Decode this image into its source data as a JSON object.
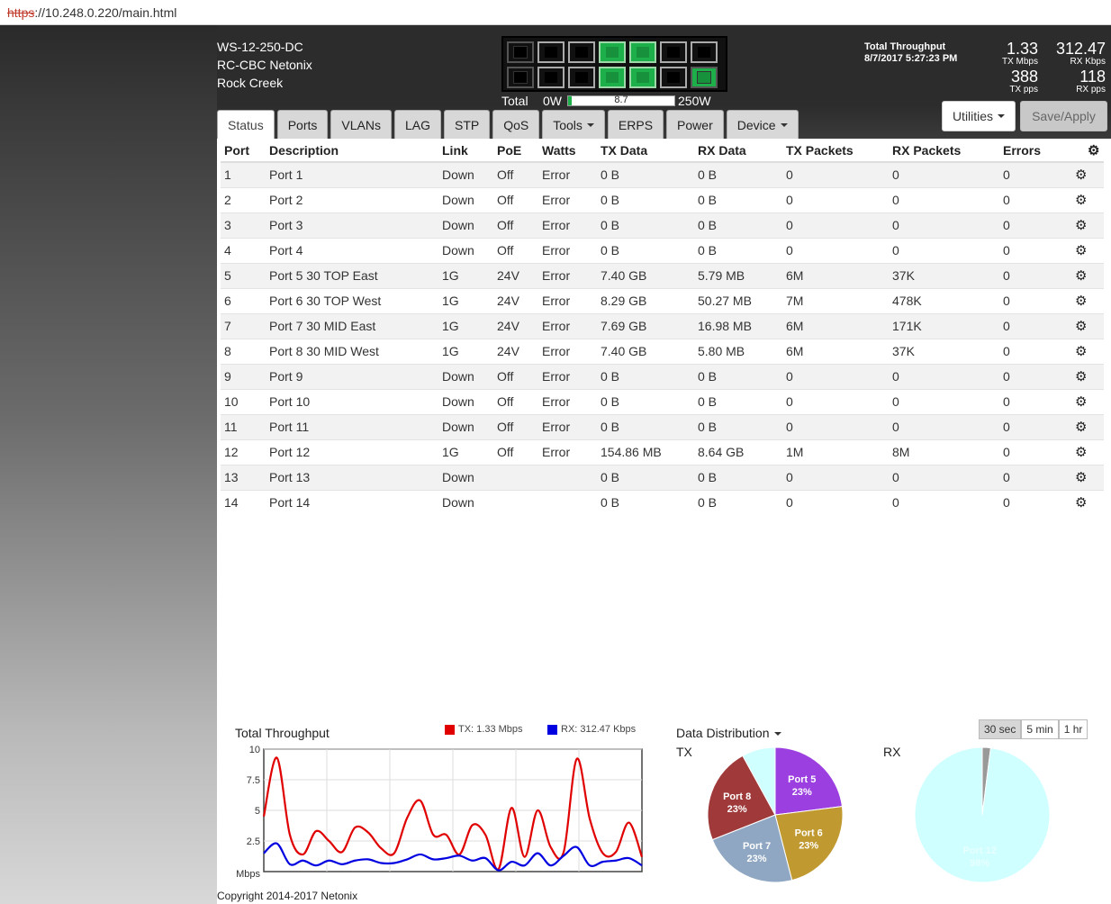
{
  "browser": {
    "protocol": "https",
    "url_rest": "://10.248.0.220/main.html"
  },
  "device": {
    "model": "WS-12-250-DC",
    "name": "RC-CBC Netonix",
    "location": "Rock Creek"
  },
  "power": {
    "label": "Total",
    "min_label": "0W",
    "max_label": "250W",
    "value": "8.7",
    "fraction": 0.035
  },
  "throughput": {
    "title": "Total Throughput",
    "timestamp": "8/7/2017 5:27:23 PM",
    "tx_mbps": "1.33",
    "tx_mbps_unit": "TX Mbps",
    "rx_kbps": "312.47",
    "rx_kbps_unit": "RX Kbps",
    "tx_pps": "388",
    "tx_pps_unit": "TX pps",
    "rx_pps": "118",
    "rx_pps_unit": "RX pps"
  },
  "buttons": {
    "utilities": "Utilities",
    "save_apply": "Save/Apply"
  },
  "tabs": [
    {
      "label": "Status",
      "dropdown": false
    },
    {
      "label": "Ports",
      "dropdown": false
    },
    {
      "label": "VLANs",
      "dropdown": false
    },
    {
      "label": "LAG",
      "dropdown": false
    },
    {
      "label": "STP",
      "dropdown": false
    },
    {
      "label": "QoS",
      "dropdown": false
    },
    {
      "label": "Tools",
      "dropdown": true
    },
    {
      "label": "ERPS",
      "dropdown": false
    },
    {
      "label": "Power",
      "dropdown": false
    },
    {
      "label": "Device",
      "dropdown": true
    }
  ],
  "table": {
    "headers": [
      "Port",
      "Description",
      "Link",
      "PoE",
      "Watts",
      "TX Data",
      "RX Data",
      "TX Packets",
      "RX Packets",
      "Errors"
    ],
    "rows": [
      [
        "1",
        "Port 1",
        "Down",
        "Off",
        "Error",
        "0 B",
        "0 B",
        "0",
        "0",
        "0"
      ],
      [
        "2",
        "Port 2",
        "Down",
        "Off",
        "Error",
        "0 B",
        "0 B",
        "0",
        "0",
        "0"
      ],
      [
        "3",
        "Port 3",
        "Down",
        "Off",
        "Error",
        "0 B",
        "0 B",
        "0",
        "0",
        "0"
      ],
      [
        "4",
        "Port 4",
        "Down",
        "Off",
        "Error",
        "0 B",
        "0 B",
        "0",
        "0",
        "0"
      ],
      [
        "5",
        "Port 5 30 TOP East",
        "1G",
        "24V",
        "Error",
        "7.40 GB",
        "5.79 MB",
        "6M",
        "37K",
        "0"
      ],
      [
        "6",
        "Port 6 30 TOP West",
        "1G",
        "24V",
        "Error",
        "8.29 GB",
        "50.27 MB",
        "7M",
        "478K",
        "0"
      ],
      [
        "7",
        "Port 7 30 MID East",
        "1G",
        "24V",
        "Error",
        "7.69 GB",
        "16.98 MB",
        "6M",
        "171K",
        "0"
      ],
      [
        "8",
        "Port 8 30 MID West",
        "1G",
        "24V",
        "Error",
        "7.40 GB",
        "5.80 MB",
        "6M",
        "37K",
        "0"
      ],
      [
        "9",
        "Port 9",
        "Down",
        "Off",
        "Error",
        "0 B",
        "0 B",
        "0",
        "0",
        "0"
      ],
      [
        "10",
        "Port 10",
        "Down",
        "Off",
        "Error",
        "0 B",
        "0 B",
        "0",
        "0",
        "0"
      ],
      [
        "11",
        "Port 11",
        "Down",
        "Off",
        "Error",
        "0 B",
        "0 B",
        "0",
        "0",
        "0"
      ],
      [
        "12",
        "Port 12",
        "1G",
        "Off",
        "Error",
        "154.86 MB",
        "8.64 GB",
        "1M",
        "8M",
        "0"
      ],
      [
        "13",
        "Port 13",
        "Down",
        "",
        "",
        "0 B",
        "0 B",
        "0",
        "0",
        "0"
      ],
      [
        "14",
        "Port 14",
        "Down",
        "",
        "",
        "0 B",
        "0 B",
        "0",
        "0",
        "0"
      ]
    ]
  },
  "faceplate": {
    "top_row_up": [
      false,
      false,
      false,
      true,
      true,
      false,
      false
    ],
    "bottom_row_up": [
      false,
      false,
      false,
      true,
      true,
      false,
      true
    ]
  },
  "charts": {
    "throughput_title": "Total Throughput",
    "tx_legend": "TX: 1.33 Mbps",
    "rx_legend": "RX: 312.47 Kbps",
    "tx_color": "#e00000",
    "rx_color": "#0000e0",
    "unit_label": "Mbps",
    "dist_title": "Data Distribution",
    "tx_label": "TX",
    "rx_label": "RX",
    "ranges": [
      "30 sec",
      "5 min",
      "1 hr"
    ]
  },
  "chart_data": [
    {
      "type": "line",
      "title": "Total Throughput",
      "ylabel": "Mbps",
      "ylim": [
        0,
        10
      ],
      "yticks": [
        2.5,
        5,
        7.5,
        10
      ],
      "grid": true,
      "legend": "top",
      "x": [
        0,
        1,
        2,
        3,
        4,
        5,
        6,
        7,
        8,
        9,
        10,
        11,
        12,
        13,
        14,
        15,
        16,
        17,
        18,
        19,
        20,
        21,
        22,
        23,
        24,
        25,
        26,
        27,
        28,
        29
      ],
      "series": [
        {
          "name": "TX: 1.33 Mbps",
          "color": "#e00000",
          "values": [
            4.5,
            9.3,
            3.0,
            1.4,
            3.3,
            2.5,
            1.6,
            3.6,
            3.2,
            1.9,
            1.5,
            4.4,
            5.8,
            3.0,
            3.0,
            1.4,
            3.8,
            3.0,
            0.2,
            5.2,
            1.2,
            5.0,
            2.0,
            1.6,
            9.2,
            4.3,
            1.5,
            1.6,
            4.0,
            1.2
          ]
        },
        {
          "name": "RX: 312.47 Kbps",
          "color": "#0000e0",
          "values": [
            1.5,
            2.3,
            0.6,
            0.9,
            0.5,
            0.9,
            0.6,
            0.9,
            1.0,
            0.7,
            0.7,
            1.0,
            1.4,
            1.0,
            1.1,
            1.3,
            0.9,
            1.1,
            0.1,
            0.8,
            0.5,
            1.5,
            0.5,
            1.3,
            2.0,
            0.5,
            0.8,
            0.9,
            1.1,
            0.5
          ]
        }
      ]
    },
    {
      "type": "pie",
      "title": "TX",
      "labels": [
        "Port 5",
        "Port 6",
        "Port 7",
        "Port 8",
        "Other"
      ],
      "values": [
        23,
        23,
        23,
        23,
        8
      ],
      "display": [
        "23%",
        "23%",
        "23%",
        "23%",
        ""
      ],
      "colors": [
        "#9b3fe0",
        "#c09a30",
        "#8fa7c2",
        "#a03a3a",
        "#cfffff"
      ]
    },
    {
      "type": "pie",
      "title": "RX",
      "labels": [
        "Port 12",
        "Other"
      ],
      "values": [
        98,
        2
      ],
      "display": [
        "98%",
        ""
      ],
      "colors": [
        "#cfffff",
        "#999999"
      ]
    }
  ]
}
